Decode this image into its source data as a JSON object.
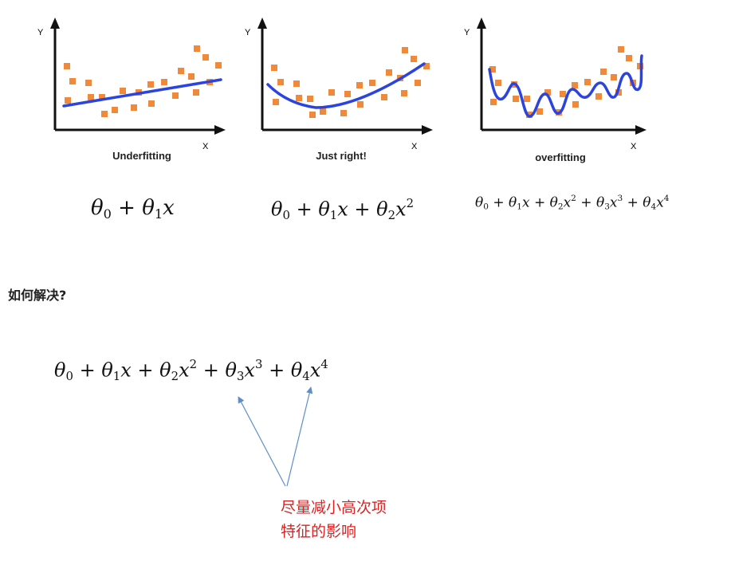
{
  "colors": {
    "points": "#f08a3a",
    "curve": "#2b44e0",
    "axes": "#111111",
    "note": "#e02020",
    "arrow": "#5b8fc9"
  },
  "axis_labels": {
    "y": "Y",
    "x": "X"
  },
  "panels": [
    {
      "caption": "Underfitting",
      "formula": {
        "terms": [
          {
            "base": "θ",
            "sub": "0",
            "sup": "",
            "op": ""
          },
          {
            "base": "θ",
            "sub": "1",
            "sup": "",
            "op": "+",
            "var": "x"
          }
        ]
      }
    },
    {
      "caption": "Just right!",
      "formula": {
        "terms": [
          {
            "base": "θ",
            "sub": "0",
            "sup": "",
            "op": ""
          },
          {
            "base": "θ",
            "sub": "1",
            "sup": "",
            "op": "+",
            "var": "x"
          },
          {
            "base": "θ",
            "sub": "2",
            "sup": "2",
            "op": "+",
            "var": "x"
          }
        ]
      }
    },
    {
      "caption": "overfitting",
      "formula": {
        "terms": [
          {
            "base": "θ",
            "sub": "0",
            "sup": "",
            "op": ""
          },
          {
            "base": "θ",
            "sub": "1",
            "sup": "",
            "op": "+",
            "var": "x"
          },
          {
            "base": "θ",
            "sub": "2",
            "sup": "2",
            "op": "+",
            "var": "x"
          },
          {
            "base": "θ",
            "sub": "3",
            "sup": "3",
            "op": "+",
            "var": "x"
          },
          {
            "base": "θ",
            "sub": "4",
            "sup": "4",
            "op": "+",
            "var": "x"
          }
        ]
      }
    }
  ],
  "section_heading": "如何解决?",
  "main_formula": {
    "terms": [
      {
        "base": "θ",
        "sub": "0",
        "sup": "",
        "op": ""
      },
      {
        "base": "θ",
        "sub": "1",
        "sup": "",
        "op": "+",
        "var": "x"
      },
      {
        "base": "θ",
        "sub": "2",
        "sup": "2",
        "op": "+",
        "var": "x"
      },
      {
        "base": "θ",
        "sub": "3",
        "sup": "3",
        "op": "+",
        "var": "x"
      },
      {
        "base": "θ",
        "sub": "4",
        "sup": "4",
        "op": "+",
        "var": "x"
      }
    ]
  },
  "annotation": {
    "line1": "尽量减小高次项",
    "line2": "特征的影响"
  }
}
